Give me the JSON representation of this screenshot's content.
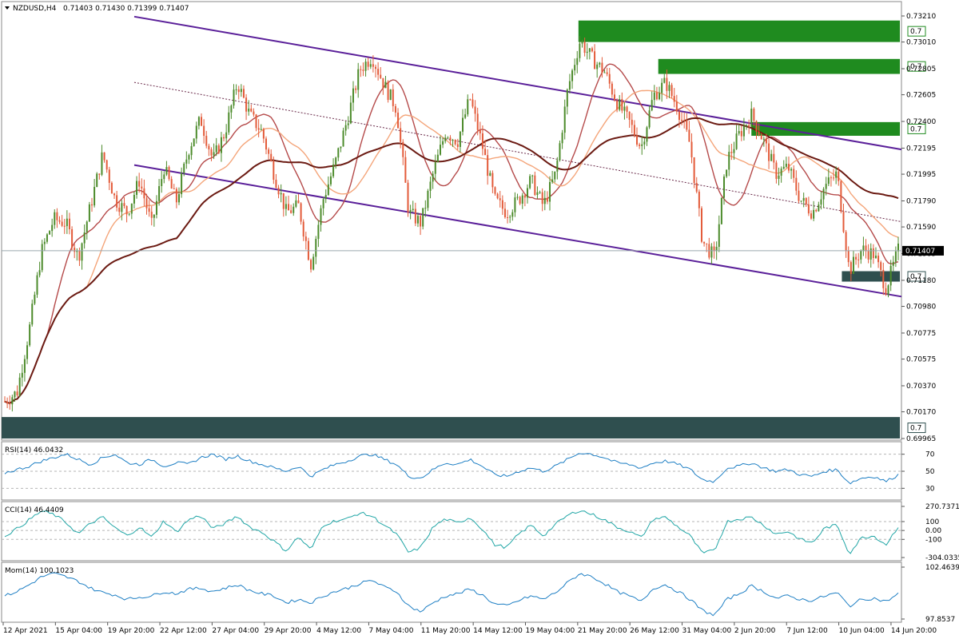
{
  "header": {
    "symbol": "NZDUSD,H4",
    "ohlc": "0.71403 0.71430 0.71399 0.71407"
  },
  "chart_data": [
    {
      "type": "candlestick",
      "panel": "price",
      "title": "NZDUSD,H4 0.71403 0.71430 0.71399 0.71407",
      "ylim": [
        0.69965,
        0.7321
      ],
      "y_ticks": [
        "0.73210",
        "0.73010",
        "0.72805",
        "0.72605",
        "0.72400",
        "0.72195",
        "0.71995",
        "0.71790",
        "0.71590",
        "0.71385",
        "0.71180",
        "0.70980",
        "0.70775",
        "0.70575",
        "0.70370",
        "0.70170",
        "0.69965"
      ],
      "current_price": "0.71407",
      "x_ticks": [
        "12 Apr 2021",
        "15 Apr 04:00",
        "19 Apr 20:00",
        "22 Apr 12:00",
        "27 Apr 04:00",
        "29 Apr 20:00",
        "4 May 12:00",
        "7 May 04:00",
        "11 May 20:00",
        "14 May 12:00",
        "19 May 04:00",
        "21 May 20:00",
        "26 May 12:00",
        "31 May 04:00",
        "2 Jun 20:00",
        "7 Jun 12:00",
        "10 Jun 04:00",
        "14 Jun 20:00"
      ],
      "close_path": [
        [
          0,
          0.7025
        ],
        [
          1,
          0.7032
        ],
        [
          2,
          0.708
        ],
        [
          3,
          0.714
        ],
        [
          4,
          0.7165
        ],
        [
          5,
          0.7162
        ],
        [
          6,
          0.7135
        ],
        [
          7,
          0.7175
        ],
        [
          8,
          0.7215
        ],
        [
          9,
          0.718
        ],
        [
          10,
          0.717
        ],
        [
          11,
          0.7195
        ],
        [
          12,
          0.716
        ],
        [
          13,
          0.7205
        ],
        [
          14,
          0.7178
        ],
        [
          15,
          0.7218
        ],
        [
          16,
          0.7242
        ],
        [
          17,
          0.721
        ],
        [
          18,
          0.7232
        ],
        [
          19,
          0.727
        ],
        [
          20,
          0.7245
        ],
        [
          21,
          0.7232
        ],
        [
          22,
          0.72
        ],
        [
          23,
          0.717
        ],
        [
          24,
          0.7175
        ],
        [
          25,
          0.713
        ],
        [
          26,
          0.718
        ],
        [
          27,
          0.7208
        ],
        [
          28,
          0.7242
        ],
        [
          29,
          0.728
        ],
        [
          30,
          0.729
        ],
        [
          31,
          0.7268
        ],
        [
          32,
          0.725
        ],
        [
          33,
          0.717
        ],
        [
          34,
          0.7162
        ],
        [
          35,
          0.72
        ],
        [
          36,
          0.7232
        ],
        [
          37,
          0.7225
        ],
        [
          38,
          0.7258
        ],
        [
          39,
          0.7222
        ],
        [
          40,
          0.718
        ],
        [
          41,
          0.717
        ],
        [
          42,
          0.718
        ],
        [
          43,
          0.7195
        ],
        [
          44,
          0.7175
        ],
        [
          45,
          0.72
        ],
        [
          46,
          0.7265
        ],
        [
          47,
          0.7302
        ],
        [
          48,
          0.7288
        ],
        [
          49,
          0.7278
        ],
        [
          50,
          0.7255
        ],
        [
          51,
          0.724
        ],
        [
          52,
          0.722
        ],
        [
          53,
          0.726
        ],
        [
          54,
          0.727
        ],
        [
          55,
          0.725
        ],
        [
          56,
          0.7222
        ],
        [
          57,
          0.7148
        ],
        [
          58,
          0.7135
        ],
        [
          59,
          0.721
        ],
        [
          60,
          0.723
        ],
        [
          61,
          0.7245
        ],
        [
          62,
          0.7225
        ],
        [
          63,
          0.72
        ],
        [
          64,
          0.7205
        ],
        [
          65,
          0.718
        ],
        [
          66,
          0.717
        ],
        [
          67,
          0.719
        ],
        [
          68,
          0.72
        ],
        [
          69,
          0.7125
        ],
        [
          70,
          0.7142
        ],
        [
          71,
          0.7138
        ],
        [
          72,
          0.7112
        ],
        [
          73,
          0.7141
        ]
      ],
      "indicators": [
        {
          "name": "SMA fast (red)",
          "color": "#b54a4a"
        },
        {
          "name": "SMA medium (orange)",
          "color": "#f4a57a"
        },
        {
          "name": "SMA slow (dark brown)",
          "color": "#6b1a12"
        }
      ],
      "zones": [
        {
          "kind": "supply",
          "color": "#1f8b1f",
          "label": "0.7"
        },
        {
          "kind": "supply",
          "color": "#1f8b1f",
          "label": "0.7"
        },
        {
          "kind": "supply",
          "color": "#1f8b1f",
          "label": "0.7"
        },
        {
          "kind": "demand",
          "color": "#2f4f4f",
          "label": "0.7"
        },
        {
          "kind": "demand",
          "color": "#2f4f4f",
          "label": "0.7"
        }
      ]
    },
    {
      "type": "line",
      "panel": "rsi",
      "title": "RSI(14) 46.0432",
      "ylim": [
        20,
        80
      ],
      "y_ticks": [
        "70",
        "50",
        "30"
      ],
      "levels": [
        70,
        50,
        30
      ],
      "color": "#1e7fc4",
      "values": [
        48,
        52,
        56,
        62,
        66,
        70,
        64,
        58,
        66,
        70,
        60,
        58,
        64,
        56,
        60,
        58,
        66,
        70,
        64,
        68,
        62,
        58,
        54,
        50,
        56,
        44,
        52,
        58,
        62,
        68,
        70,
        64,
        58,
        44,
        42,
        52,
        60,
        58,
        64,
        56,
        46,
        44,
        50,
        54,
        50,
        56,
        64,
        72,
        70,
        66,
        60,
        58,
        54,
        60,
        62,
        58,
        52,
        40,
        38,
        54,
        56,
        60,
        54,
        50,
        52,
        46,
        44,
        50,
        52,
        36,
        42,
        44,
        38,
        46
      ]
    },
    {
      "type": "line",
      "panel": "cci",
      "title": "CCI(14) 46.4409",
      "ylim": [
        -304.0335,
        270.7371
      ],
      "y_ticks": [
        "270.7371",
        "100",
        "0.00",
        "-100",
        "-304.0335"
      ],
      "levels": [
        100,
        0,
        -100
      ],
      "color": "#20a6a6",
      "values": [
        -60,
        20,
        120,
        220,
        180,
        90,
        -40,
        80,
        150,
        30,
        -60,
        40,
        -80,
        110,
        -20,
        120,
        170,
        20,
        80,
        160,
        40,
        -20,
        -120,
        -230,
        -70,
        -220,
        60,
        110,
        130,
        200,
        160,
        60,
        -40,
        -250,
        -190,
        40,
        130,
        80,
        150,
        20,
        -160,
        -190,
        -40,
        60,
        -60,
        70,
        170,
        230,
        180,
        120,
        40,
        -10,
        -80,
        130,
        150,
        40,
        -60,
        -260,
        -220,
        100,
        130,
        150,
        60,
        -40,
        -10,
        -100,
        -140,
        30,
        60,
        -260,
        -80,
        -60,
        -160,
        46
      ]
    },
    {
      "type": "line",
      "panel": "momentum",
      "title": "Mom(14) 100.1023",
      "ylim": [
        97.8537,
        102.4639
      ],
      "y_ticks": [
        "102.4639",
        "97.8537"
      ],
      "color": "#1e7fc4",
      "values": [
        99.9,
        100.3,
        100.9,
        101.6,
        101.9,
        101.6,
        101.2,
        100.6,
        100.2,
        100.0,
        99.6,
        99.8,
        99.9,
        100.3,
        100.1,
        100.5,
        100.6,
        100.3,
        100.6,
        100.9,
        100.4,
        100.1,
        99.9,
        99.3,
        99.6,
        99.3,
        99.9,
        100.3,
        100.6,
        101.0,
        101.3,
        100.7,
        100.3,
        99.0,
        98.5,
        99.3,
        99.9,
        100.1,
        100.5,
        100.0,
        99.2,
        99.0,
        99.5,
        99.9,
        99.6,
        100.2,
        101.1,
        101.9,
        101.6,
        101.0,
        100.3,
        99.9,
        99.4,
        100.6,
        100.9,
        100.3,
        99.6,
        98.6,
        98.2,
        99.6,
        100.1,
        100.8,
        100.3,
        99.7,
        99.9,
        99.6,
        99.5,
        99.9,
        100.2,
        99.0,
        99.6,
        99.7,
        99.4,
        100.1
      ]
    }
  ]
}
